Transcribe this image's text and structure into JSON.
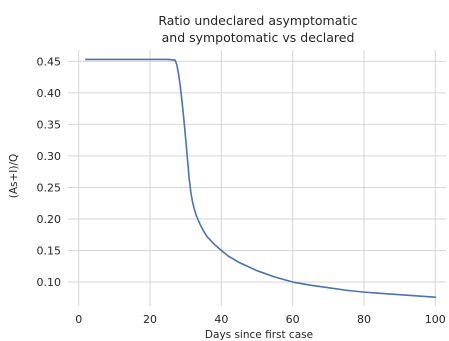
{
  "chart_data": {
    "type": "line",
    "title_lines": [
      "Ratio  undeclared asymptomatic",
      "and sympotomatic vs declared"
    ],
    "xlabel": "Days since first case",
    "ylabel": "(As+I)/Q",
    "xlim": [
      -3,
      103
    ],
    "ylim": [
      0.062,
      0.468
    ],
    "x_ticks": [
      0,
      20,
      40,
      60,
      80,
      100
    ],
    "x_tick_labels": [
      "0",
      "20",
      "40",
      "60",
      "80",
      "100"
    ],
    "y_ticks": [
      0.1,
      0.15,
      0.2,
      0.25,
      0.3,
      0.35,
      0.4,
      0.45
    ],
    "y_tick_labels": [
      "0.10",
      "0.15",
      "0.20",
      "0.25",
      "0.30",
      "0.35",
      "0.40",
      "0.45"
    ],
    "grid": true,
    "line_color": "#4c72b0",
    "series": [
      {
        "x": [
          2,
          5,
          10,
          15,
          20,
          25,
          27,
          27.5,
          28,
          28.5,
          29,
          29.5,
          30,
          30.5,
          31,
          31.5,
          32,
          32.5,
          33,
          34,
          35,
          36,
          38,
          40,
          42,
          45,
          50,
          55,
          60,
          65,
          70,
          75,
          80,
          85,
          90,
          95,
          100
        ],
        "y": [
          0.453,
          0.453,
          0.453,
          0.453,
          0.453,
          0.453,
          0.452,
          0.445,
          0.43,
          0.41,
          0.385,
          0.357,
          0.327,
          0.295,
          0.263,
          0.24,
          0.225,
          0.214,
          0.205,
          0.192,
          0.181,
          0.172,
          0.16,
          0.15,
          0.141,
          0.131,
          0.118,
          0.108,
          0.1,
          0.095,
          0.091,
          0.087,
          0.084,
          0.082,
          0.08,
          0.078,
          0.076
        ]
      }
    ]
  }
}
